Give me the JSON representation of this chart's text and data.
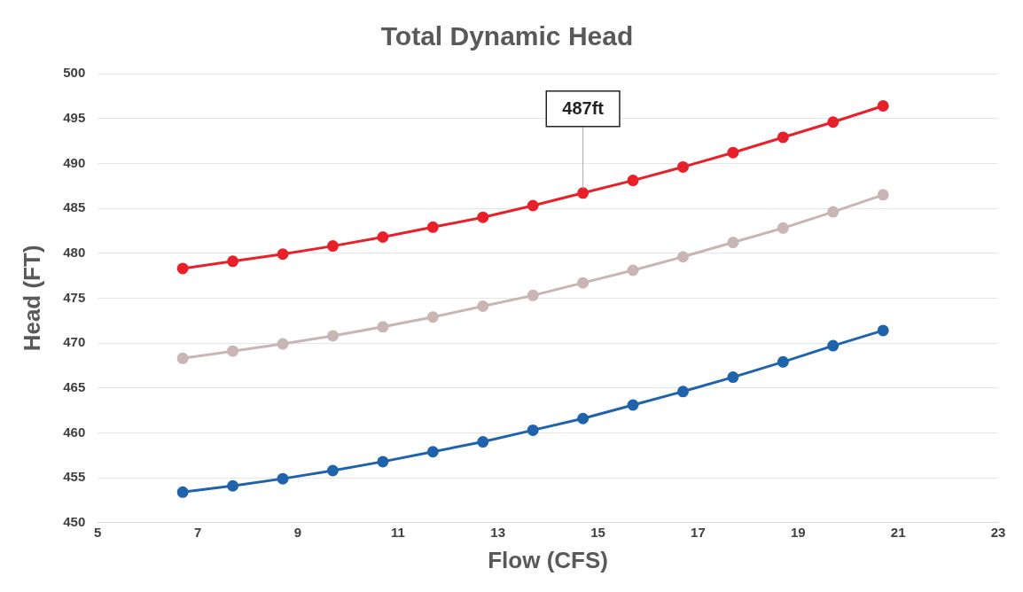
{
  "chart_data": {
    "type": "line",
    "title": "Total Dynamic Head",
    "xlabel": "Flow (CFS)",
    "ylabel": "Head (FT)",
    "x": [
      6.7,
      7.7,
      8.7,
      9.7,
      10.7,
      11.7,
      12.7,
      13.7,
      14.7,
      15.7,
      16.7,
      17.7,
      18.7,
      19.7,
      20.7
    ],
    "series": [
      {
        "color": "#e8202a",
        "values": [
          478.3,
          479.1,
          479.9,
          480.8,
          481.8,
          482.9,
          484.0,
          485.3,
          486.7,
          488.1,
          489.6,
          491.2,
          492.9,
          494.6,
          496.4
        ]
      },
      {
        "color": "#c9b6b4",
        "values": [
          468.3,
          469.1,
          469.9,
          470.8,
          471.8,
          472.9,
          474.1,
          475.3,
          476.7,
          478.1,
          479.6,
          481.2,
          482.8,
          484.6,
          486.5
        ]
      },
      {
        "color": "#1f63ad",
        "values": [
          453.4,
          454.1,
          454.9,
          455.8,
          456.8,
          457.9,
          459.0,
          460.3,
          461.6,
          463.1,
          464.6,
          466.2,
          467.9,
          469.7,
          471.4
        ]
      }
    ],
    "xlim": [
      5,
      23
    ],
    "xticks": [
      5,
      7,
      9,
      11,
      13,
      15,
      17,
      19,
      21,
      23
    ],
    "ylim": [
      450,
      500
    ],
    "yticks": [
      450,
      455,
      460,
      465,
      470,
      475,
      480,
      485,
      490,
      495,
      500
    ],
    "grid": "y",
    "legend": false,
    "marker": "circle",
    "line_style": "solid",
    "annotations": [
      {
        "text": "487ft",
        "x": 14.7,
        "y": 486.7
      }
    ]
  }
}
